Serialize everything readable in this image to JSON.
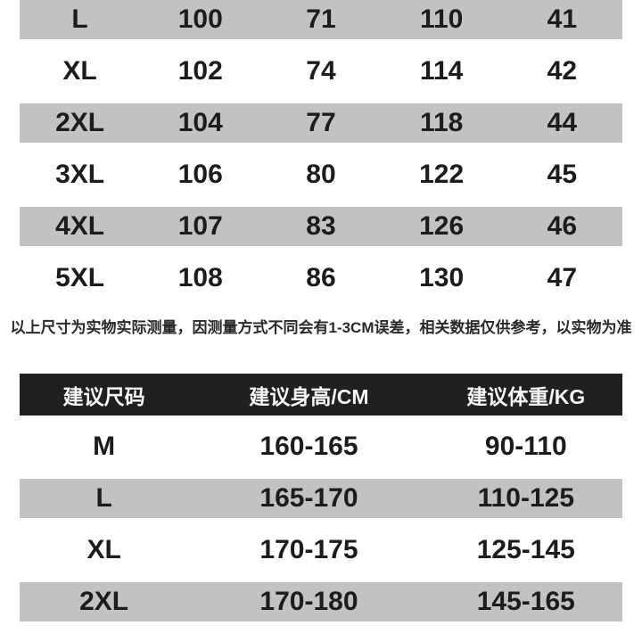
{
  "colors": {
    "page_bg": "#ffffff",
    "shaded_row_bg": "#c2c2c2",
    "header_bar_bg": "#1f2022",
    "header_bar_text": "#f7f7f7",
    "body_text": "#1c1c1c"
  },
  "size_table": {
    "rows": [
      {
        "size": "L",
        "values": [
          "100",
          "71",
          "110",
          "41"
        ]
      },
      {
        "size": "XL",
        "values": [
          "102",
          "74",
          "114",
          "42"
        ]
      },
      {
        "size": "2XL",
        "values": [
          "104",
          "77",
          "118",
          "44"
        ]
      },
      {
        "size": "3XL",
        "values": [
          "106",
          "80",
          "122",
          "45"
        ]
      },
      {
        "size": "4XL",
        "values": [
          "107",
          "83",
          "126",
          "46"
        ]
      },
      {
        "size": "5XL",
        "values": [
          "108",
          "86",
          "130",
          "47"
        ]
      }
    ]
  },
  "note": "以上尺寸为实物实际测量，因测量方式不同会有1-3CM误差，相关数据仅供参考，以实物为准",
  "suggestion_table": {
    "headers": [
      "建议尺码",
      "建议身高/CM",
      "建议体重/KG"
    ],
    "rows": [
      {
        "size": "M",
        "height": "160-165",
        "weight": "90-110"
      },
      {
        "size": "L",
        "height": "165-170",
        "weight": "110-125"
      },
      {
        "size": "XL",
        "height": "170-175",
        "weight": "125-145"
      },
      {
        "size": "2XL",
        "height": "170-180",
        "weight": "145-165"
      }
    ]
  }
}
